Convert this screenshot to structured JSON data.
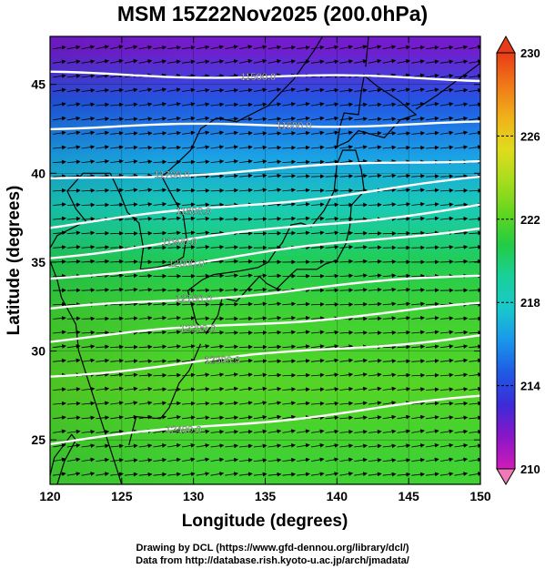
{
  "title": "MSM 15Z22Nov2025 (200.0hPa)",
  "credits": {
    "line1": "Drawing by DCL (https://www.gfd-dennou.org/library/dcl/)",
    "line2": "Data from http://database.rish.kyoto-u.ac.jp/arch/jmadata/"
  },
  "chart_data": {
    "type": "heatmap",
    "title": "MSM 15Z22Nov2025 (200.0hPa)",
    "xlabel": "Longitude (degrees)",
    "ylabel": "Latitude  (degrees)",
    "xlim": [
      120,
      150
    ],
    "ylim": [
      22.5,
      47.7
    ],
    "x_ticks": [
      "120",
      "125",
      "130",
      "135",
      "140",
      "145",
      "150"
    ],
    "y_ticks": [
      "25",
      "30",
      "35",
      "40",
      "45"
    ],
    "colorbar": {
      "min": 210,
      "max": 230,
      "tick_labels": [
        "210",
        "214",
        "218",
        "222",
        "226",
        "230"
      ],
      "colors": [
        "#d01cb8",
        "#8a16c8",
        "#3c2bd8",
        "#1f5ae4",
        "#1a96ec",
        "#18c8cc",
        "#1ad09a",
        "#22cc44",
        "#62d61e",
        "#a8dc1e",
        "#e0dc1c",
        "#f0b01a",
        "#f07818",
        "#e83c18"
      ]
    },
    "temperature_field": [
      {
        "lat": 47,
        "value": 212
      },
      {
        "lat": 44,
        "value": 214.5
      },
      {
        "lat": 41,
        "value": 216.5
      },
      {
        "lat": 38,
        "value": 218.5
      },
      {
        "lat": 35,
        "value": 220.5
      },
      {
        "lat": 32,
        "value": 221.5
      },
      {
        "lat": 28,
        "value": 222
      },
      {
        "lat": 24,
        "value": 221.5
      }
    ],
    "contours": [
      {
        "label": "11500.0",
        "label_lon": 134.5,
        "lat_west": 45.6,
        "lat_east": 45.3
      },
      {
        "label": "11600.0",
        "label_lon": 137.0,
        "lat_west": 42.6,
        "lat_east": 42.8
      },
      {
        "label": "11700.0",
        "label_lon": 128.5,
        "lat_west": 39.6,
        "lat_east": 40.8
      },
      {
        "label": "11800.0",
        "label_lon": 130.0,
        "lat_west": 37.0,
        "lat_east": 39.7
      },
      {
        "label": "11900.0",
        "label_lon": 129.0,
        "lat_west": 35.3,
        "lat_east": 38.2
      },
      {
        "label": "12000.0",
        "label_lon": 129.5,
        "lat_west": 34.0,
        "lat_east": 37.0
      },
      {
        "label": "12100.0",
        "label_lon": 130.0,
        "lat_west": 32.3,
        "lat_east": 34.3
      },
      {
        "label": "12200.0",
        "label_lon": 130.3,
        "lat_west": 30.6,
        "lat_east": 32.6
      },
      {
        "label": "12300.0",
        "label_lon": 132.0,
        "lat_west": 28.6,
        "lat_east": 30.9
      },
      {
        "label": "12400.0",
        "label_lon": 129.3,
        "lat_west": 24.8,
        "lat_east": 27.4
      }
    ],
    "wind": {
      "description_values": [
        {
          "lat": 46,
          "dir_deg": 10
        },
        {
          "lat": 40,
          "dir_deg": 5
        },
        {
          "lat": 35,
          "dir_deg": 3
        },
        {
          "lat": 30,
          "dir_deg": 5
        },
        {
          "lat": 25,
          "dir_deg": 8
        }
      ]
    },
    "grid": true
  }
}
